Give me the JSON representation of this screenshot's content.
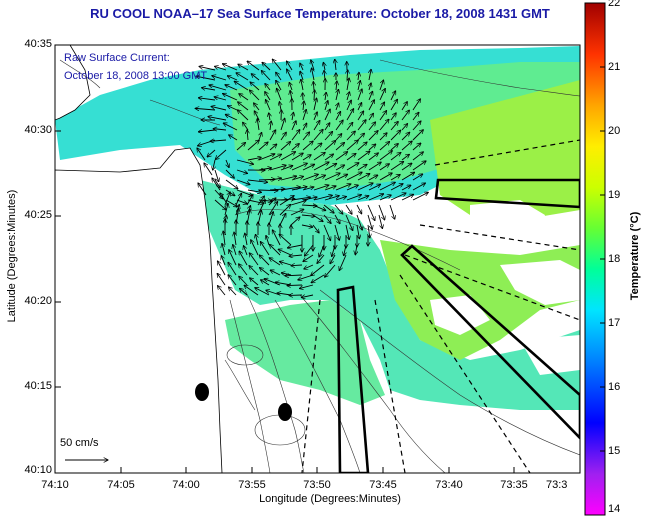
{
  "title": "RU COOL  NOAA–17  Sea Surface Temperature:  October 18, 2008 1431 GMT",
  "current_label": {
    "line1": "Raw Surface Current:",
    "line2": "October 18, 2008 13:00 GMT"
  },
  "axes": {
    "xlabel": "Longitude (Degrees:Minutes)",
    "ylabel": "Latitude (Degrees:Minutes)",
    "x_ticks": [
      "74:10",
      "74:05",
      "74:00",
      "73:55",
      "73:50",
      "73:45",
      "73:40",
      "73:35",
      "73:3"
    ],
    "y_ticks": [
      "40:35",
      "40:30",
      "40:25",
      "40:20",
      "40:15",
      "40:10"
    ]
  },
  "colorbar": {
    "label": "Temperature (°C)",
    "ticks": [
      "22",
      "21",
      "20",
      "19",
      "18",
      "17",
      "16",
      "15",
      "14"
    ],
    "colors": [
      "#ff00ff",
      "#9400d3",
      "#0000ff",
      "#0080ff",
      "#00e5ff",
      "#00ffa0",
      "#7fff00",
      "#ffff00",
      "#ffc000",
      "#ff6000",
      "#ff0000",
      "#a00000"
    ]
  },
  "scale": {
    "label": "50 cm/s"
  },
  "colors": {
    "title_blue": "#1a1aa6",
    "land": "#ffffff",
    "sst_cool": "#36dfd3",
    "sst_warm": "#9bf047"
  }
}
